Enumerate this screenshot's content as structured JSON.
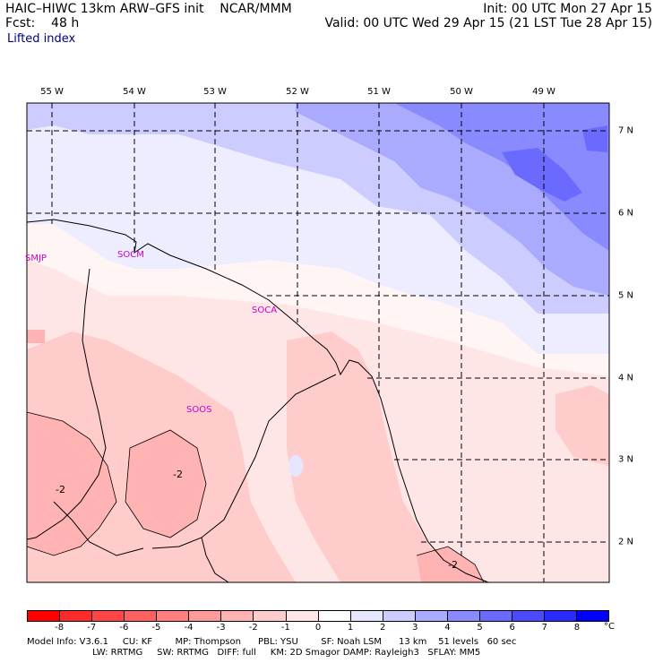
{
  "header": {
    "model_line": "HAIC–HIWC 13km ARW–GFS init    NCAR/MMM",
    "fcst_line": "Fcst:    48 h",
    "init_line": "Init: 00 UTC Mon 27 Apr 15",
    "valid_line": "Valid: 00 UTC Wed 29 Apr 15 (21 LST Tue 28 Apr 15)",
    "field_name": "Lifted index"
  },
  "map": {
    "lon_labels": [
      "55 W",
      "54 W",
      "53 W",
      "52 W",
      "51 W",
      "50 W",
      "49 W"
    ],
    "lat_labels": [
      "7 N",
      "6 N",
      "5 N",
      "4 N",
      "3 N",
      "2 N"
    ],
    "stations": [
      "SMJP",
      "SOCM",
      "SOCA",
      "SOOS"
    ],
    "contour_labels": [
      "-2",
      "-2",
      "-2"
    ]
  },
  "colorbar": {
    "colors": [
      "#ff0000",
      "#ff2a2a",
      "#ff4545",
      "#ff6060",
      "#ff7f7f",
      "#ff9a9a",
      "#ffb3b3",
      "#ffcccc",
      "#ffe6e6",
      "#ffffff",
      "#e6e6ff",
      "#ccccff",
      "#aaaaff",
      "#8a8aff",
      "#6a6aff",
      "#4a4aff",
      "#2a2aff",
      "#0000ff"
    ],
    "ticks": [
      "-8",
      "-7",
      "-6",
      "-5",
      "-4",
      "-3",
      "-2",
      "-1",
      "0",
      "1",
      "2",
      "3",
      "4",
      "5",
      "6",
      "7",
      "8"
    ],
    "unit": "°C"
  },
  "footer": {
    "line1": "Model Info: V3.6.1     CU: KF        MP: Thompson      PBL: YSU        SF: Noah LSM      13 km    51 levels   60 sec",
    "line2": "                       LW: RRTMG     SW: RRTMG   DIFF: full     KM: 2D Smagor DAMP: Rayleigh3   SFLAY: MM5"
  }
}
